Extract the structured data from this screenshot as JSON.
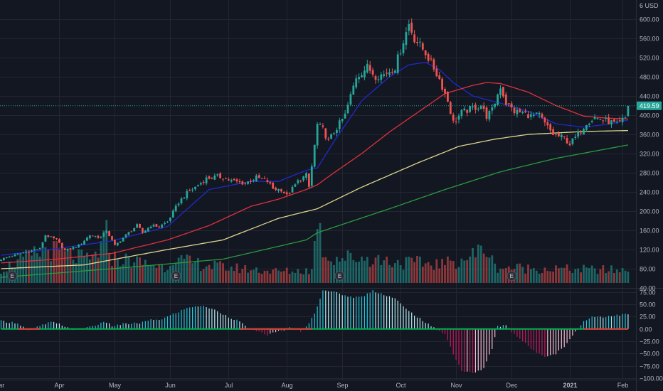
{
  "chart_data": {
    "type": "candlestick",
    "currency_label": "USD",
    "current_price": 419.59,
    "current_price_label": "419.59",
    "price_axis": {
      "ticks": [
        40,
        80,
        120,
        160,
        200,
        240,
        280,
        320,
        360,
        400,
        440,
        480,
        520,
        560,
        600
      ],
      "tick_labels": [
        "40.00",
        "80.00",
        "120.00",
        "160.00",
        "200.00",
        "240.00",
        "280.00",
        "320.00",
        "360.00",
        "400.00",
        "440.00",
        "480.00",
        "520.00",
        "560.00",
        "600.00"
      ],
      "range": [
        40,
        640
      ]
    },
    "oscillator_axis": {
      "ticks": [
        75,
        50,
        25,
        0,
        -25,
        -50,
        -75,
        -100
      ],
      "tick_labels": [
        "75.00",
        "50.00",
        "25.00",
        "0.00",
        "−25.00",
        "−50.00",
        "−75.00",
        "−100.00"
      ],
      "range": [
        -103,
        82
      ]
    },
    "months": [
      {
        "label": "Mar",
        "bold": false
      },
      {
        "label": "Apr",
        "bold": false
      },
      {
        "label": "May",
        "bold": false
      },
      {
        "label": "Jun",
        "bold": false
      },
      {
        "label": "Jul",
        "bold": false
      },
      {
        "label": "Aug",
        "bold": false
      },
      {
        "label": "Sep",
        "bold": false
      },
      {
        "label": "Oct",
        "bold": false
      },
      {
        "label": "Nov",
        "bold": false
      },
      {
        "label": "Dec",
        "bold": false
      },
      {
        "label": "2021",
        "bold": true
      },
      {
        "label": "Feb",
        "bold": false
      }
    ],
    "earnings_markers": [
      "E",
      "E",
      "E",
      "E"
    ],
    "price_waypoints": [
      [
        0,
        100
      ],
      [
        7,
        112
      ],
      [
        14,
        122
      ],
      [
        16,
        150
      ],
      [
        20,
        140
      ],
      [
        23,
        118
      ],
      [
        28,
        128
      ],
      [
        32,
        150
      ],
      [
        36,
        145
      ],
      [
        38,
        160
      ],
      [
        41,
        128
      ],
      [
        45,
        150
      ],
      [
        49,
        170
      ],
      [
        51,
        155
      ],
      [
        54,
        170
      ],
      [
        57,
        168
      ],
      [
        60,
        178
      ],
      [
        64,
        218
      ],
      [
        67,
        238
      ],
      [
        70,
        250
      ],
      [
        74,
        268
      ],
      [
        78,
        272
      ],
      [
        80,
        270
      ],
      [
        83,
        263
      ],
      [
        86,
        260
      ],
      [
        88,
        258
      ],
      [
        92,
        270
      ],
      [
        96,
        262
      ],
      [
        98,
        247
      ],
      [
        101,
        245
      ],
      [
        103,
        232
      ],
      [
        107,
        262
      ],
      [
        110,
        275
      ],
      [
        111,
        250
      ],
      [
        114,
        380
      ],
      [
        116,
        370
      ],
      [
        118,
        345
      ],
      [
        120,
        365
      ],
      [
        124,
        400
      ],
      [
        128,
        480
      ],
      [
        132,
        500
      ],
      [
        135,
        482
      ],
      [
        138,
        485
      ],
      [
        142,
        500
      ],
      [
        145,
        555
      ],
      [
        147,
        590
      ],
      [
        149,
        560
      ],
      [
        153,
        530
      ],
      [
        156,
        498
      ],
      [
        158,
        475
      ],
      [
        161,
        430
      ],
      [
        163,
        385
      ],
      [
        166,
        405
      ],
      [
        170,
        415
      ],
      [
        173,
        420
      ],
      [
        175,
        398
      ],
      [
        177,
        410
      ],
      [
        180,
        460
      ],
      [
        182,
        425
      ],
      [
        185,
        408
      ],
      [
        188,
        405
      ],
      [
        191,
        398
      ],
      [
        194,
        400
      ],
      [
        196,
        382
      ],
      [
        199,
        360
      ],
      [
        203,
        352
      ],
      [
        205,
        340
      ],
      [
        208,
        360
      ],
      [
        211,
        385
      ],
      [
        214,
        395
      ],
      [
        217,
        390
      ],
      [
        220,
        385
      ],
      [
        222,
        380
      ],
      [
        225,
        395
      ],
      [
        226,
        419.59
      ]
    ],
    "moving_averages": [
      {
        "color": "#1f2acb",
        "points": [
          [
            0,
            108
          ],
          [
            20,
            122
          ],
          [
            40,
            138
          ],
          [
            60,
            168
          ],
          [
            75,
            245
          ],
          [
            90,
            262
          ],
          [
            100,
            262
          ],
          [
            110,
            285
          ],
          [
            114,
            290
          ],
          [
            120,
            345
          ],
          [
            130,
            430
          ],
          [
            140,
            480
          ],
          [
            147,
            505
          ],
          [
            153,
            510
          ],
          [
            158,
            495
          ],
          [
            163,
            468
          ],
          [
            170,
            440
          ],
          [
            180,
            425
          ],
          [
            190,
            408
          ],
          [
            200,
            382
          ],
          [
            210,
            375
          ],
          [
            220,
            382
          ],
          [
            226,
            390
          ]
        ]
      },
      {
        "color": "#e0313b",
        "points": [
          [
            0,
            92
          ],
          [
            20,
            100
          ],
          [
            40,
            112
          ],
          [
            60,
            140
          ],
          [
            75,
            170
          ],
          [
            90,
            210
          ],
          [
            100,
            225
          ],
          [
            110,
            245
          ],
          [
            114,
            255
          ],
          [
            120,
            280
          ],
          [
            130,
            320
          ],
          [
            140,
            365
          ],
          [
            150,
            405
          ],
          [
            160,
            445
          ],
          [
            170,
            462
          ],
          [
            175,
            468
          ],
          [
            180,
            466
          ],
          [
            190,
            448
          ],
          [
            200,
            420
          ],
          [
            210,
            398
          ],
          [
            218,
            394
          ],
          [
            226,
            392
          ]
        ]
      },
      {
        "color": "#ddd58c",
        "points": [
          [
            0,
            80
          ],
          [
            30,
            88
          ],
          [
            60,
            120
          ],
          [
            80,
            140
          ],
          [
            100,
            185
          ],
          [
            114,
            205
          ],
          [
            130,
            250
          ],
          [
            150,
            300
          ],
          [
            165,
            335
          ],
          [
            178,
            350
          ],
          [
            190,
            360
          ],
          [
            200,
            363
          ],
          [
            210,
            366
          ],
          [
            226,
            368
          ]
        ]
      },
      {
        "color": "#2a9a3e",
        "points": [
          [
            0,
            62
          ],
          [
            40,
            80
          ],
          [
            80,
            100
          ],
          [
            110,
            140
          ],
          [
            114,
            155
          ],
          [
            140,
            205
          ],
          [
            160,
            245
          ],
          [
            180,
            282
          ],
          [
            200,
            310
          ],
          [
            226,
            338
          ]
        ]
      }
    ],
    "volume_profile": [
      [
        0,
        0.22
      ],
      [
        15,
        0.5
      ],
      [
        16,
        0.55
      ],
      [
        32,
        0.35
      ],
      [
        36,
        0.55
      ],
      [
        38,
        0.75
      ],
      [
        40,
        0.4
      ],
      [
        60,
        0.25
      ],
      [
        62,
        0.45
      ],
      [
        64,
        0.35
      ],
      [
        80,
        0.25
      ],
      [
        100,
        0.18
      ],
      [
        112,
        0.2
      ],
      [
        114,
        1.0
      ],
      [
        116,
        0.55
      ],
      [
        118,
        0.4
      ],
      [
        130,
        0.4
      ],
      [
        145,
        0.32
      ],
      [
        160,
        0.3
      ],
      [
        168,
        0.4
      ],
      [
        175,
        0.55
      ],
      [
        178,
        0.25
      ],
      [
        200,
        0.22
      ],
      [
        226,
        0.2
      ]
    ],
    "oscillator_profile": [
      [
        0,
        16
      ],
      [
        6,
        12
      ],
      [
        10,
        -4
      ],
      [
        14,
        6
      ],
      [
        18,
        14
      ],
      [
        22,
        8
      ],
      [
        26,
        -2
      ],
      [
        30,
        2
      ],
      [
        34,
        8
      ],
      [
        38,
        14
      ],
      [
        40,
        6
      ],
      [
        44,
        10
      ],
      [
        50,
        12
      ],
      [
        54,
        18
      ],
      [
        58,
        20
      ],
      [
        62,
        30
      ],
      [
        66,
        40
      ],
      [
        70,
        47
      ],
      [
        74,
        45
      ],
      [
        78,
        36
      ],
      [
        82,
        25
      ],
      [
        86,
        15
      ],
      [
        88,
        5
      ],
      [
        92,
        -5
      ],
      [
        96,
        -12
      ],
      [
        100,
        -5
      ],
      [
        104,
        2
      ],
      [
        108,
        -4
      ],
      [
        110,
        5
      ],
      [
        113,
        30
      ],
      [
        116,
        80
      ],
      [
        120,
        75
      ],
      [
        126,
        65
      ],
      [
        130,
        65
      ],
      [
        134,
        78
      ],
      [
        138,
        70
      ],
      [
        142,
        62
      ],
      [
        146,
        40
      ],
      [
        150,
        25
      ],
      [
        155,
        5
      ],
      [
        160,
        -10
      ],
      [
        163,
        -50
      ],
      [
        166,
        -85
      ],
      [
        170,
        -90
      ],
      [
        174,
        -80
      ],
      [
        177,
        -40
      ],
      [
        179,
        5
      ],
      [
        182,
        8
      ],
      [
        184,
        -5
      ],
      [
        188,
        -25
      ],
      [
        192,
        -45
      ],
      [
        196,
        -55
      ],
      [
        200,
        -50
      ],
      [
        204,
        -30
      ],
      [
        207,
        -5
      ],
      [
        210,
        15
      ],
      [
        213,
        25
      ],
      [
        217,
        25
      ],
      [
        226,
        30
      ]
    ]
  }
}
